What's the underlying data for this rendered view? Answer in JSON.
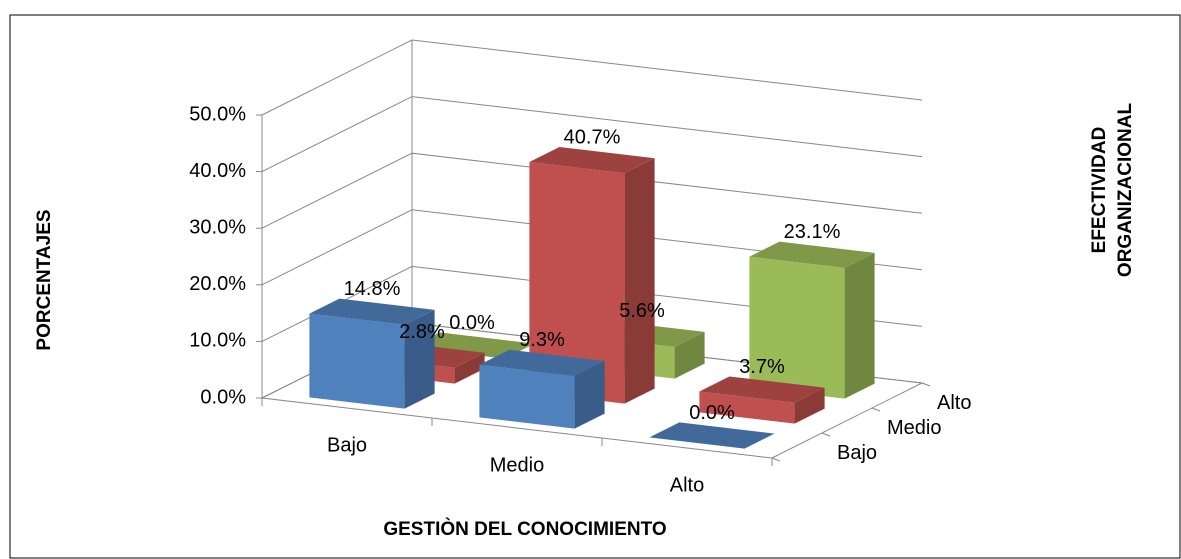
{
  "chart_data": {
    "type": "bar3d",
    "x_label": "GESTIÒN DEL CONOCIMIENTO",
    "y_label": "PORCENTAJES",
    "z_label": [
      "EFECTIVIDAD",
      "ORGANIZACIONAL"
    ],
    "categories": [
      "Bajo",
      "Medio",
      "Alto"
    ],
    "series": [
      {
        "name": "Bajo",
        "color": "#4f81bd",
        "values": [
          14.8,
          9.3,
          0.0
        ],
        "value_labels": [
          "14.8%",
          "9.3%",
          "0.0%"
        ]
      },
      {
        "name": "Medio",
        "color": "#c0504d",
        "values": [
          2.8,
          40.7,
          3.7
        ],
        "value_labels": [
          "2.8%",
          "40.7%",
          "3.7%"
        ]
      },
      {
        "name": "Alto",
        "color": "#9bbb59",
        "values": [
          0.0,
          5.6,
          23.1
        ],
        "value_labels": [
          "0.0%",
          "5.6%",
          "23.1%"
        ]
      }
    ],
    "ylim": [
      0,
      50
    ],
    "yticks": [
      {
        "value": 0,
        "label": "0.0%"
      },
      {
        "value": 10,
        "label": "10.0%"
      },
      {
        "value": 20,
        "label": "20.0%"
      },
      {
        "value": 30,
        "label": "30.0%"
      },
      {
        "value": 40,
        "label": "40.0%"
      },
      {
        "value": 50,
        "label": "50.0%"
      }
    ],
    "grid": true
  }
}
